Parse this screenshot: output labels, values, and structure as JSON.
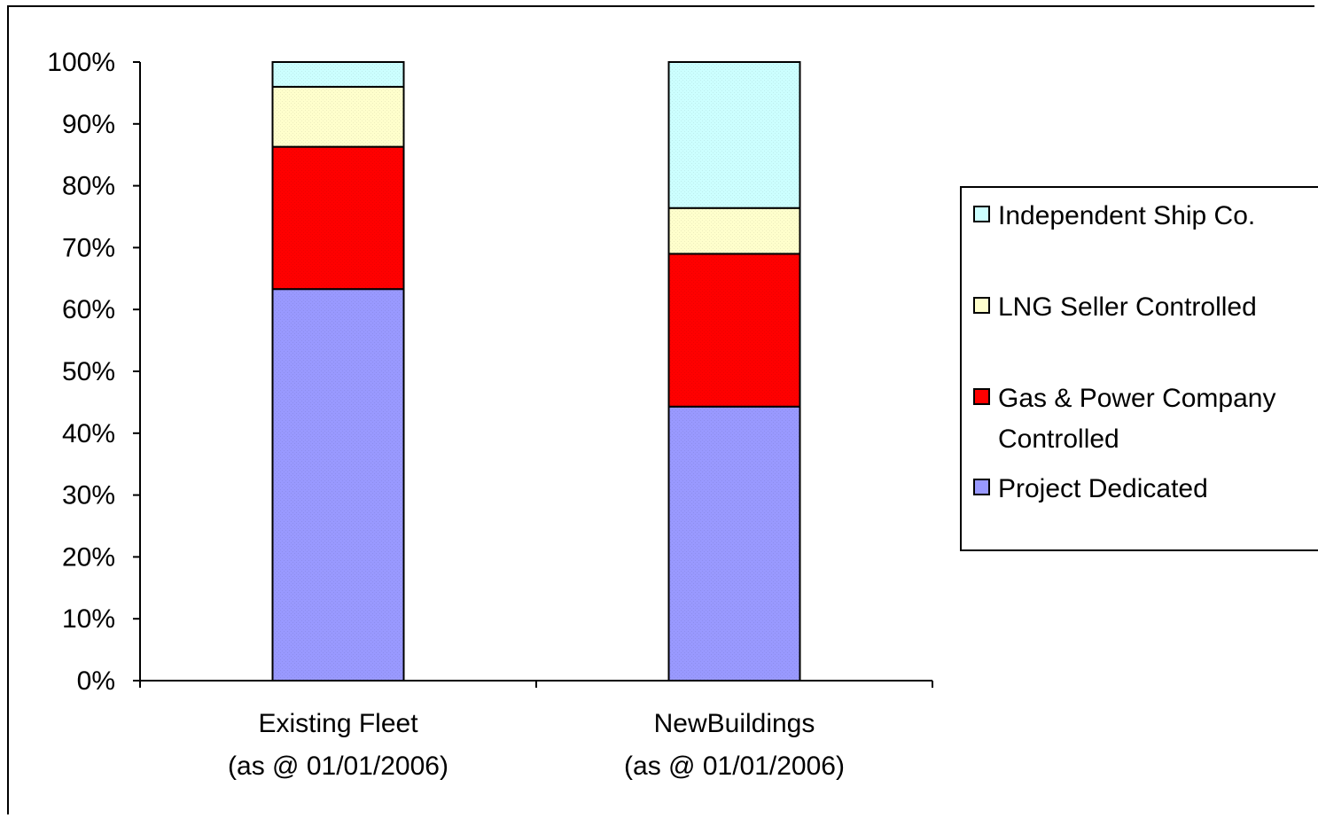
{
  "chart_data": {
    "type": "bar",
    "stacked": true,
    "percent_stacked": true,
    "title": "",
    "xlabel": "",
    "ylabel": "",
    "ylim": [
      0,
      100
    ],
    "y_ticks": [
      "0%",
      "10%",
      "20%",
      "30%",
      "40%",
      "50%",
      "60%",
      "70%",
      "80%",
      "90%",
      "100%"
    ],
    "grid": false,
    "legend_position": "right",
    "categories": [
      [
        "Existing Fleet",
        "(as @ 01/01/2006)"
      ],
      [
        "NewBuildings",
        "(as @ 01/01/2006)"
      ]
    ],
    "series": [
      {
        "name": "Project Dedicated",
        "values": [
          63.3,
          44.3
        ],
        "color": "#9999ff"
      },
      {
        "name": "Gas & Power Company Controlled",
        "values": [
          23.0,
          24.7
        ],
        "color": "#ff0000"
      },
      {
        "name": "LNG Seller Controlled",
        "values": [
          9.7,
          7.4
        ],
        "color": "#ffffcc"
      },
      {
        "name": "Independent Ship Co.",
        "values": [
          4.0,
          23.6
        ],
        "color": "#ccffff"
      }
    ],
    "legend_order": [
      [
        "Independent Ship Co."
      ],
      [
        "LNG Seller Controlled"
      ],
      [
        "Gas & Power Company",
        "Controlled"
      ],
      [
        "Project Dedicated"
      ]
    ]
  }
}
